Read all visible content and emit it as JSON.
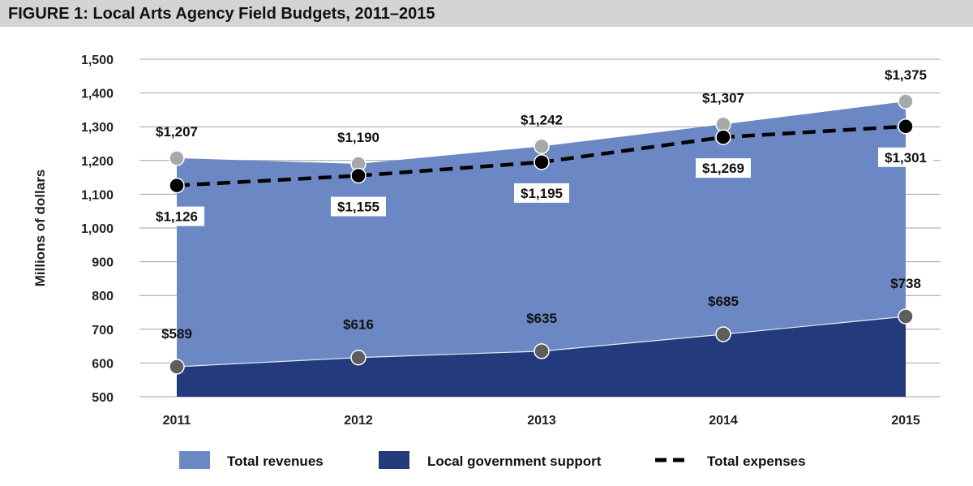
{
  "chart_data": {
    "type": "area",
    "title": "FIGURE 1: Local Arts Agency Field Budgets, 2011–2015",
    "xlabel": "",
    "ylabel": "Millions of dollars",
    "categories": [
      "2011",
      "2012",
      "2013",
      "2014",
      "2015"
    ],
    "ylim": [
      500,
      1500
    ],
    "yticks": [
      500,
      600,
      700,
      800,
      900,
      1000,
      1100,
      1200,
      1300,
      1400,
      1500
    ],
    "ytick_labels": [
      "500",
      "600",
      "700",
      "800",
      "900",
      "1,000",
      "1,100",
      "1,200",
      "1,300",
      "1,400",
      "1,500"
    ],
    "grid": true,
    "series": [
      {
        "name": "Total revenues",
        "kind": "area",
        "color": "#6b88c4",
        "marker_color": "#a8a8a8",
        "values": [
          1207,
          1190,
          1242,
          1307,
          1375
        ],
        "labels": [
          "$1,207",
          "$1,190",
          "$1,242",
          "$1,307",
          "$1,375"
        ]
      },
      {
        "name": "Local government support",
        "kind": "area",
        "color": "#233a7c",
        "marker_color": "#5e5e5e",
        "values": [
          589,
          616,
          635,
          685,
          738
        ],
        "labels": [
          "$589",
          "$616",
          "$635",
          "$685",
          "$738"
        ]
      },
      {
        "name": "Total expenses",
        "kind": "dashed-line",
        "color": "#000000",
        "marker_color": "#000000",
        "values": [
          1126,
          1155,
          1195,
          1269,
          1301
        ],
        "labels": [
          "$1,126",
          "$1,155",
          "$1,195",
          "$1,269",
          "$1,301"
        ]
      }
    ],
    "legend": [
      "Total revenues",
      "Local government support",
      "Total expenses"
    ],
    "legend_position": "bottom"
  }
}
